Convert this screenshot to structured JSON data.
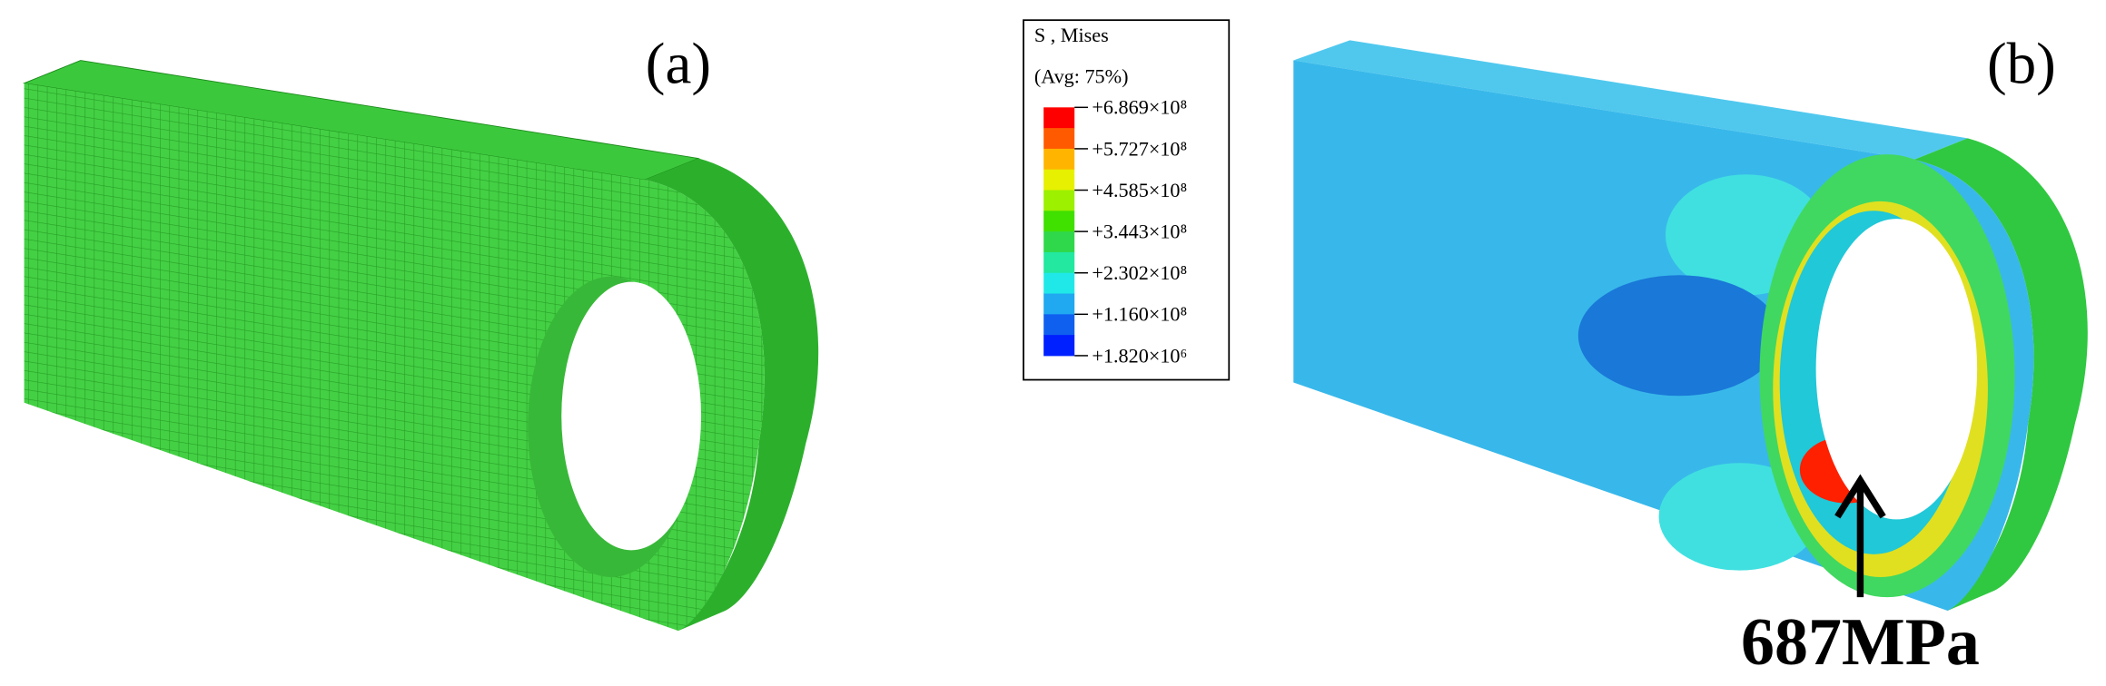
{
  "panels": [
    {
      "label": "(a)"
    },
    {
      "label": "(b)"
    }
  ],
  "legend": {
    "title": "S , Mises",
    "subtitle": "(Avg: 75%)",
    "labels": [
      "+6.869×10⁸",
      "+5.727×10⁸",
      "+4.585×10⁸",
      "+3.443×10⁸",
      "+2.302×10⁸",
      "+1.160×10⁸",
      "+1.820×10⁶"
    ],
    "colors": [
      "#ff0000",
      "#ff5a00",
      "#ffb400",
      "#e6f000",
      "#9cf000",
      "#40e000",
      "#2fd84a",
      "#22e8a0",
      "#20e8e8",
      "#20a8f0",
      "#1060f0",
      "#0020ff"
    ]
  },
  "annotation": "687MPa"
}
